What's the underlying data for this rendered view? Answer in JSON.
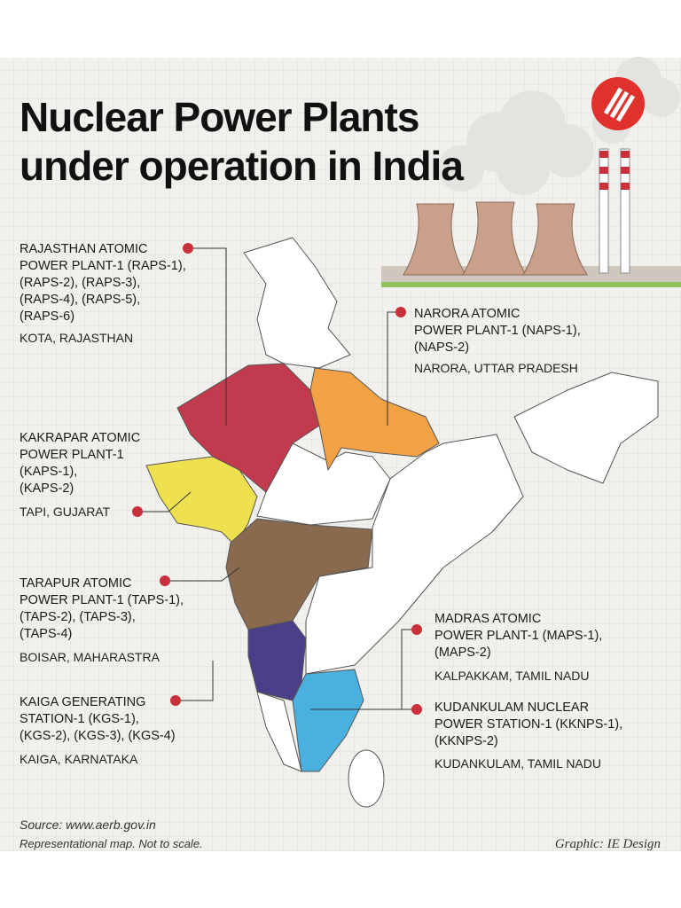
{
  "header": {
    "title_lines": [
      "Nuclear Power Plants",
      "under operation in India"
    ]
  },
  "plants": [
    {
      "name_lines": [
        "RAJASTHAN ATOMIC",
        "POWER PLANT-1 (RAPS-1),",
        "(RAPS-2), (RAPS-3),",
        "(RAPS-4),  (RAPS-5),",
        "(RAPS-6)"
      ],
      "location": "KOTA, RAJASTHAN"
    },
    {
      "name_lines": [
        "NARORA ATOMIC",
        "POWER PLANT-1 (NAPS-1),",
        "(NAPS-2)"
      ],
      "location": "NARORA, UTTAR PRADESH"
    },
    {
      "name_lines": [
        "KAKRAPAR ATOMIC",
        "POWER PLANT-1",
        "(KAPS-1),",
        "(KAPS-2)"
      ],
      "location": "TAPI, GUJARAT"
    },
    {
      "name_lines": [
        "TARAPUR ATOMIC",
        "POWER PLANT-1 (TAPS-1),",
        "(TAPS-2), (TAPS-3),",
        "(TAPS-4)"
      ],
      "location": "BOISAR, MAHARASTRA"
    },
    {
      "name_lines": [
        "KAIGA GENERATING",
        "STATION-1 (KGS-1),",
        "(KGS-2), (KGS-3), (KGS-4)"
      ],
      "location": "KAIGA, KARNATAKA"
    },
    {
      "name_lines": [
        "MADRAS ATOMIC",
        "POWER PLANT-1 (MAPS-1),",
        "(MAPS-2)"
      ],
      "location": "KALPAKKAM, TAMIL NADU"
    },
    {
      "name_lines": [
        "KUDANKULAM NUCLEAR",
        "POWER STATION-1 (KKNPS-1),",
        "(KKNPS-2)"
      ],
      "location": "KUDANKULAM, TAMIL NADU"
    }
  ],
  "footer": {
    "source": "Source: www.aerb.gov.in",
    "note": "Representational map. Not to scale.",
    "credit": "Graphic: IE Design"
  }
}
